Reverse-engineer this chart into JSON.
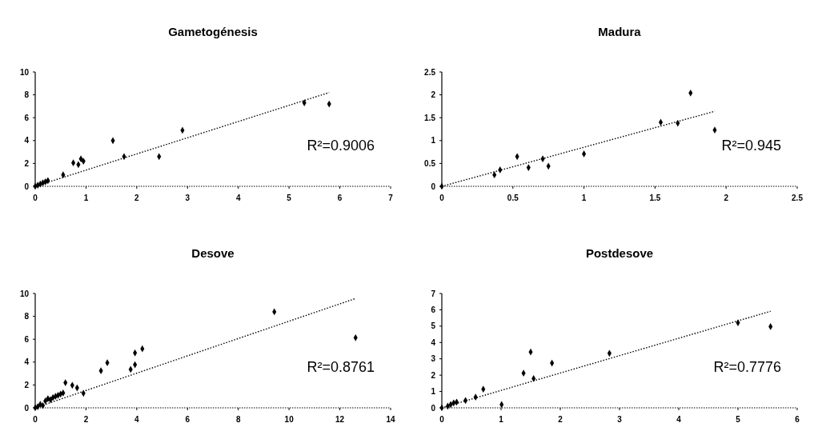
{
  "chart_data": [
    {
      "type": "scatter",
      "title": "Gametogénesis",
      "xlim": [
        0,
        7
      ],
      "xticks": [
        0,
        1,
        2,
        3,
        4,
        5,
        6,
        7
      ],
      "ylim": [
        0,
        10
      ],
      "yticks": [
        0,
        2,
        4,
        6,
        8,
        10
      ],
      "grid": false,
      "annotations": [
        "R²=0.9006"
      ],
      "series": [
        {
          "marker": "diamond",
          "color": "#000000",
          "x": [
            0,
            0.05,
            0.1,
            0.15,
            0.2,
            0.25,
            0.55,
            0.75,
            0.85,
            0.9,
            0.95,
            1.53,
            1.75,
            2.44,
            2.9,
            5.3,
            5.79
          ],
          "values": [
            0,
            0.1,
            0.2,
            0.3,
            0.4,
            0.5,
            1.0,
            2.05,
            1.9,
            2.4,
            2.2,
            4.0,
            2.6,
            2.6,
            4.9,
            7.3,
            7.2
          ]
        },
        {
          "type": "line",
          "color": "#000000",
          "line_style": "dotted",
          "x": [
            0,
            5.79
          ],
          "values": [
            0,
            8.2
          ]
        }
      ]
    },
    {
      "type": "scatter",
      "title": "Madura",
      "xlim": [
        0,
        2.5
      ],
      "xticks": [
        0,
        0.5,
        1,
        1.5,
        2,
        2.5
      ],
      "ylim": [
        0,
        2.5
      ],
      "yticks": [
        0,
        0.5,
        1,
        1.5,
        2,
        2.5
      ],
      "grid": false,
      "annotations": [
        "R²=0.945"
      ],
      "series": [
        {
          "marker": "diamond",
          "color": "#000000",
          "x": [
            0,
            0.37,
            0.41,
            0.53,
            0.61,
            0.71,
            0.75,
            1.0,
            1.54,
            1.66,
            1.75,
            1.92
          ],
          "values": [
            0,
            0.25,
            0.36,
            0.65,
            0.41,
            0.6,
            0.44,
            0.71,
            1.4,
            1.38,
            2.04,
            1.23
          ]
        },
        {
          "type": "line",
          "color": "#000000",
          "line_style": "dotted",
          "x": [
            0,
            1.92
          ],
          "values": [
            0,
            1.64
          ]
        }
      ]
    },
    {
      "type": "scatter",
      "title": "Desove",
      "xlim": [
        0,
        14
      ],
      "xticks": [
        0,
        2,
        4,
        6,
        8,
        10,
        12,
        14
      ],
      "ylim": [
        0,
        10
      ],
      "yticks": [
        0,
        2,
        4,
        6,
        8,
        10
      ],
      "grid": false,
      "annotations": [
        "R²=0.8761"
      ],
      "series": [
        {
          "marker": "diamond",
          "color": "#000000",
          "x": [
            0,
            0.1,
            0.2,
            0.3,
            0.4,
            0.5,
            0.6,
            0.7,
            0.8,
            0.9,
            1.0,
            1.1,
            1.19,
            1.46,
            1.65,
            1.9,
            2.59,
            2.84,
            3.76,
            3.93,
            3.93,
            4.22,
            9.42,
            12.62
          ],
          "values": [
            0,
            0.1,
            0.3,
            0.2,
            0.6,
            0.8,
            0.7,
            0.9,
            1.0,
            1.1,
            1.2,
            1.3,
            2.2,
            1.97,
            1.74,
            1.27,
            3.24,
            3.94,
            3.36,
            3.77,
            4.8,
            5.16,
            8.4,
            6.13
          ]
        },
        {
          "type": "line",
          "color": "#000000",
          "line_style": "dotted",
          "x": [
            0,
            12.62
          ],
          "values": [
            0,
            9.56
          ]
        }
      ]
    },
    {
      "type": "scatter",
      "title": "Postdesove",
      "xlim": [
        0,
        6
      ],
      "xticks": [
        0,
        1,
        2,
        3,
        4,
        5,
        6
      ],
      "ylim": [
        0,
        7
      ],
      "yticks": [
        0,
        1,
        2,
        3,
        4,
        5,
        6,
        7
      ],
      "grid": false,
      "annotations": [
        "R²=0.7776"
      ],
      "series": [
        {
          "marker": "diamond",
          "color": "#000000",
          "x": [
            0,
            0.1,
            0.15,
            0.2,
            0.25,
            0.4,
            0.57,
            0.7,
            1.01,
            1.38,
            1.5,
            1.55,
            1.86,
            2.83,
            5.0,
            5.55
          ],
          "values": [
            0,
            0.1,
            0.2,
            0.3,
            0.35,
            0.45,
            0.65,
            1.14,
            0.2,
            2.12,
            3.42,
            1.79,
            2.74,
            3.34,
            5.21,
            4.97
          ]
        },
        {
          "type": "line",
          "color": "#000000",
          "line_style": "dotted",
          "x": [
            0,
            5.55
          ],
          "values": [
            0,
            5.91
          ]
        }
      ]
    }
  ]
}
